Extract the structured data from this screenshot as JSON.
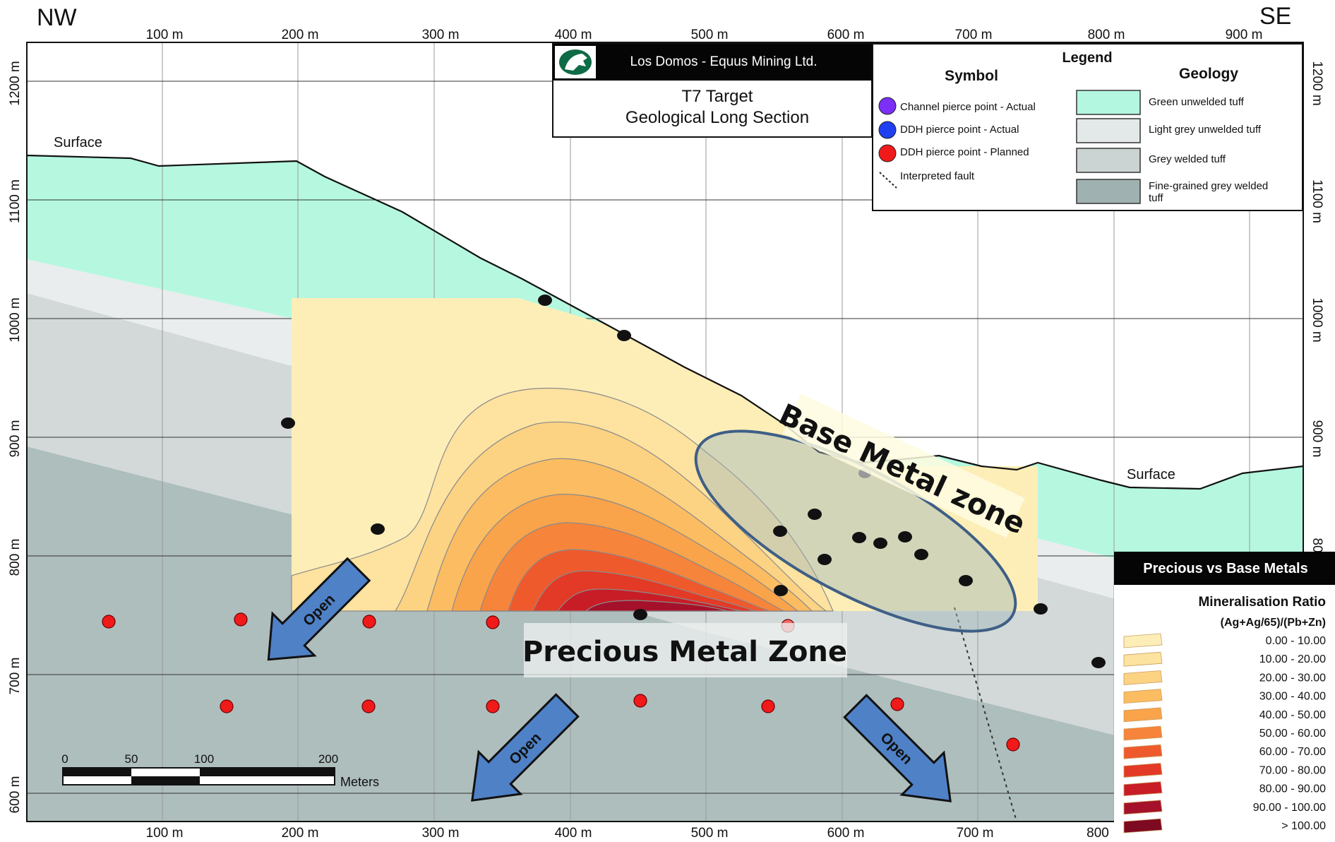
{
  "corners": {
    "left": "NW",
    "right": "SE"
  },
  "top_x_ticks": [
    "100 m",
    "200 m",
    "300 m",
    "400 m",
    "500 m",
    "600 m",
    "700 m",
    "800 m",
    "900 m"
  ],
  "bottom_x_ticks": [
    "100 m",
    "200 m",
    "300 m",
    "400 m",
    "500 m",
    "600 m",
    "700 m",
    "800"
  ],
  "left_y_ticks": [
    "1200 m",
    "1100 m",
    "1000 m",
    "900 m",
    "800 m",
    "700 m",
    "600 m"
  ],
  "right_y_ticks": [
    "1200 m",
    "1100 m",
    "1000 m",
    "900 m",
    "80"
  ],
  "surface_labels": {
    "left": "Surface",
    "right": "Surface"
  },
  "title_box": {
    "company": "Los Domos - Equus Mining Ltd.",
    "title_line1": "T7 Target",
    "title_line2": "Geological Long Section",
    "logo": "horse-head-logo"
  },
  "legend": {
    "title": "Legend",
    "symbol_header": "Symbol",
    "geology_header": "Geology",
    "symbols": [
      {
        "label": "Channel pierce point - Actual",
        "color": "#7b2ff7",
        "icon": "purple-dot"
      },
      {
        "label": "DDH pierce point - Actual",
        "color": "#1f3ff0",
        "icon": "blue-dot"
      },
      {
        "label": "DDH pierce point - Planned",
        "color": "#f01a1a",
        "icon": "red-dot"
      },
      {
        "label": "Interpreted fault",
        "color": "#333333",
        "icon": "dashed-line"
      }
    ],
    "geology": [
      {
        "label": "Green unwelded tuff",
        "color": "#b3f7e0"
      },
      {
        "label": "Light grey unwelded tuff",
        "color": "#e3e8e8"
      },
      {
        "label": "Grey welded tuff",
        "color": "#cbd4d3"
      },
      {
        "label": "Fine-grained grey welded tuff",
        "color": "#9fb1b0"
      }
    ]
  },
  "zones": {
    "base_metal": "Base Metal zone",
    "precious_metal": "Precious Metal Zone",
    "open_label": "Open"
  },
  "ratio_legend": {
    "header": "Precious vs Base Metals",
    "title": "Mineralisation Ratio",
    "formula": "(Ag+Ag/65)/(Pb+Zn)",
    "classes": [
      {
        "range": "0.00 - 10.00",
        "color": "#fdeeb8"
      },
      {
        "range": "10.00 - 20.00",
        "color": "#fde3a0"
      },
      {
        "range": "20.00 - 30.00",
        "color": "#fcd283"
      },
      {
        "range": "30.00 - 40.00",
        "color": "#fbbc62"
      },
      {
        "range": "40.00 - 50.00",
        "color": "#f9a34b"
      },
      {
        "range": "50.00 - 60.00",
        "color": "#f6843b"
      },
      {
        "range": "60.00 - 70.00",
        "color": "#ef5a2d"
      },
      {
        "range": "70.00 - 80.00",
        "color": "#e23a26"
      },
      {
        "range": "80.00 - 90.00",
        "color": "#c81d26"
      },
      {
        "range": "90.00 - 100.00",
        "color": "#a5112a"
      },
      {
        "range": "> 100.00",
        "color": "#7e0a22"
      }
    ]
  },
  "scale_bar": {
    "ticks": [
      "0",
      "50",
      "100",
      "200"
    ],
    "unit": "Meters"
  }
}
